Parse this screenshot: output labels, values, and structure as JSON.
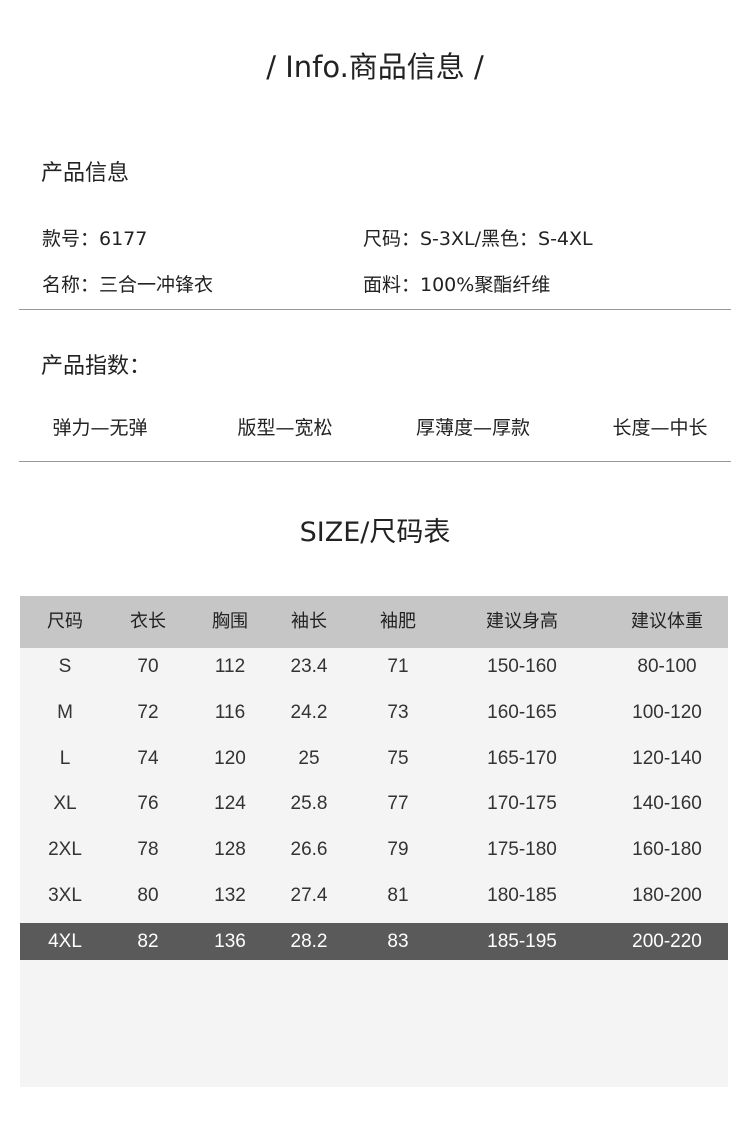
{
  "title": "/  Info.商品信息  /",
  "product_info": {
    "heading": "产品信息",
    "style_no": "款号：6177",
    "sizes": "尺码：S-3XL/黑色：S-4XL",
    "name": "名称：三合一冲锋衣",
    "fabric": "面料：100%聚酯纤维"
  },
  "product_index": {
    "heading": "产品指数：",
    "items": [
      "弹力—无弹",
      "版型—宽松",
      "厚薄度—厚款",
      "长度—中长"
    ]
  },
  "size_chart": {
    "title": "SIZE/尺码表",
    "headers": [
      "尺码",
      "衣长",
      "胸围",
      "袖长",
      "袖肥",
      "建议身高",
      "建议体重"
    ],
    "rows": [
      [
        "S",
        "70",
        "112",
        "23.4",
        "71",
        "150-160",
        "80-100"
      ],
      [
        "M",
        "72",
        "116",
        "24.2",
        "73",
        "160-165",
        "100-120"
      ],
      [
        "L",
        "74",
        "120",
        "25",
        "75",
        "165-170",
        "120-140"
      ],
      [
        "XL",
        "76",
        "124",
        "25.8",
        "77",
        "170-175",
        "140-160"
      ],
      [
        "2XL",
        "78",
        "128",
        "26.6",
        "79",
        "175-180",
        "160-180"
      ],
      [
        "3XL",
        "80",
        "132",
        "27.4",
        "81",
        "180-185",
        "180-200"
      ],
      [
        "4XL",
        "82",
        "136",
        "28.2",
        "83",
        "185-195",
        "200-220"
      ]
    ],
    "highlighted_row": "4XL",
    "colors": {
      "header_bg": "#c6c6c6",
      "body_bg": "#f4f4f4",
      "highlight_bg": "#5a5a5a"
    }
  }
}
